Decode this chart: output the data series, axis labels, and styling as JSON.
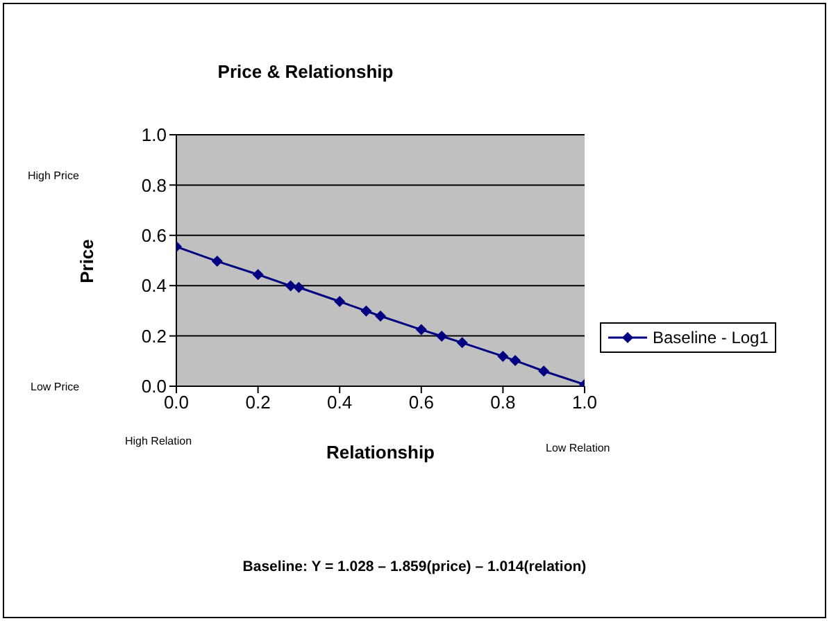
{
  "chart_data": {
    "type": "line",
    "title": "Price & Relationship",
    "xlabel": "Relationship",
    "ylabel": "Price",
    "x": [
      0,
      0.1,
      0.2,
      0.28,
      0.3,
      0.4,
      0.465,
      0.5,
      0.6,
      0.65,
      0.7,
      0.8,
      0.83,
      0.9,
      1.0
    ],
    "series": [
      {
        "name": "Baseline - Log1",
        "color": "#000080",
        "values": [
          0.555,
          0.497,
          0.444,
          0.399,
          0.393,
          0.337,
          0.299,
          0.279,
          0.225,
          0.199,
          0.173,
          0.119,
          0.102,
          0.06,
          0.007
        ]
      }
    ],
    "xlim": [
      0,
      1
    ],
    "xticks": [
      {
        "value": 0,
        "label": "0.0"
      },
      {
        "value": 0.2,
        "label": "0.2"
      },
      {
        "value": 0.4,
        "label": "0.4"
      },
      {
        "value": 0.6,
        "label": "0.6"
      },
      {
        "value": 0.8,
        "label": "0.8"
      },
      {
        "value": 1,
        "label": "1.0"
      }
    ],
    "ylim": [
      0,
      1
    ],
    "yticks": [
      {
        "value": 0,
        "label": "0.0"
      },
      {
        "value": 0.2,
        "label": "0.2"
      },
      {
        "value": 0.4,
        "label": "0.4"
      },
      {
        "value": 0.6,
        "label": "0.6"
      },
      {
        "value": 0.8,
        "label": "0.8"
      },
      {
        "value": 1,
        "label": "1.0"
      }
    ],
    "grid": "y",
    "legend": "right",
    "marker": "diamond",
    "line_style": "solid",
    "annotations": [
      "High Price",
      "Low Price",
      "High Relation",
      "Low Relation",
      "Baseline: Y = 1.028 – 1.859(price) – 1.014(relation)"
    ]
  }
}
